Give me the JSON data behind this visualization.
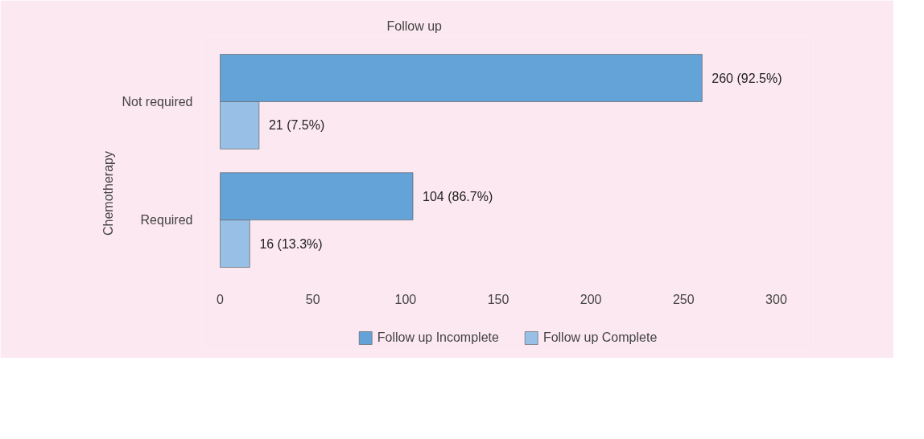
{
  "chart_data": {
    "type": "bar",
    "orientation": "horizontal",
    "title": "Follow up",
    "ylabel": "Chemotherapy",
    "categories": [
      "Not required",
      "Required"
    ],
    "series": [
      {
        "name": "Follow up Incomplete",
        "color": "#64a3d8",
        "values": [
          260,
          104
        ],
        "value_labels": [
          "260 (92.5%)",
          "104 (86.7%)"
        ]
      },
      {
        "name": "Follow up Complete",
        "color": "#98bfe5",
        "values": [
          21,
          16
        ],
        "value_labels": [
          "21 (7.5%)",
          "16 (13.3%)"
        ]
      }
    ],
    "xlim": [
      -10,
      320
    ],
    "xticks": [
      0,
      50,
      100,
      150,
      200,
      250,
      300
    ],
    "grid": false,
    "legend": "bottom"
  }
}
